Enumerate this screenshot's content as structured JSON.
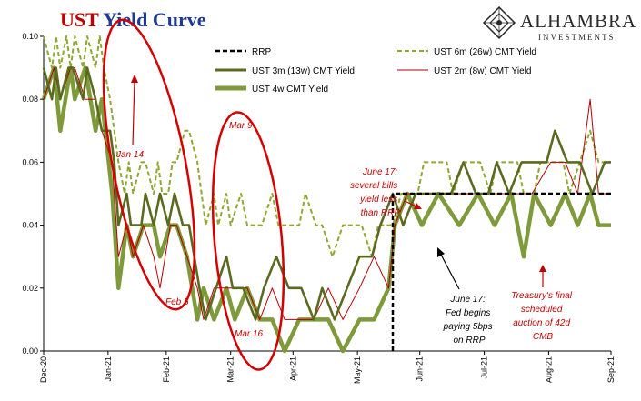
{
  "title": {
    "part1": "UST",
    "part2": " Yield Curve"
  },
  "logo": {
    "name": "ALHAMBRA",
    "sub": "INVESTMENTS"
  },
  "colors": {
    "olive_light": "#8fa832",
    "olive_dark": "#5a6b1f",
    "olive_4w": "#7f9a3a",
    "red": "#b30000",
    "ellipse": "#d40000",
    "black": "#000000"
  },
  "legend": {
    "rrp": "RRP",
    "m6": "UST 6m (26w) CMT Yield",
    "m3": "UST 3m (13w) CMT Yield",
    "m2": "UST 2m (8w) CMT Yield",
    "w4": "UST 4w CMT Yield"
  },
  "annotations": {
    "jan14": "Jan 14",
    "feb5": "Feb 5",
    "mar9": "Mar 9",
    "mar16": "Mar 16",
    "june17a": [
      "June 17:",
      "several bills",
      "yield less",
      "than RRP"
    ],
    "june17b": [
      "June 17:",
      "Fed begins",
      "paying 5bps",
      "on RRP"
    ],
    "treasury": [
      "Treasury's final",
      "scheduled",
      "auction of 42d",
      "CMB"
    ]
  },
  "chart_data": {
    "type": "line",
    "x_start": "2020-12-31",
    "x_end": "2021-09-30",
    "x_ticks": [
      "Dec-20",
      "Jan-21",
      "Feb-21",
      "Mar-21",
      "Apr-21",
      "May-21",
      "Jun-21",
      "Jul-21",
      "Aug-21",
      "Sep-21"
    ],
    "y_ticks": [
      "0.10",
      "0.08",
      "0.06",
      "0.04",
      "0.02",
      "0.00"
    ],
    "ylim": [
      0,
      0.1
    ],
    "series": [
      {
        "name": "RRP",
        "dates": [
          "2021-06-17",
          "2021-09-30"
        ],
        "values": [
          0.05,
          0.05
        ],
        "start_from_zero": true
      },
      {
        "name": "UST 6m (26w) CMT Yield",
        "dates": [
          "2020-12-31",
          "2021-01-04",
          "2021-01-06",
          "2021-01-08",
          "2021-01-11",
          "2021-01-13",
          "2021-01-15",
          "2021-01-19",
          "2021-01-21",
          "2021-01-25",
          "2021-01-27",
          "2021-01-29",
          "2021-02-01",
          "2021-02-03",
          "2021-02-05",
          "2021-02-08",
          "2021-02-10",
          "2021-02-12",
          "2021-02-16",
          "2021-02-18",
          "2021-02-22",
          "2021-02-24",
          "2021-02-26",
          "2021-03-01",
          "2021-03-03",
          "2021-03-05",
          "2021-03-09",
          "2021-03-11",
          "2021-03-15",
          "2021-03-17",
          "2021-03-19",
          "2021-03-23",
          "2021-03-25",
          "2021-03-29",
          "2021-03-31",
          "2021-04-05",
          "2021-04-08",
          "2021-04-12",
          "2021-04-15",
          "2021-04-20",
          "2021-04-23",
          "2021-04-28",
          "2021-05-03",
          "2021-05-06",
          "2021-05-11",
          "2021-05-14",
          "2021-05-19",
          "2021-05-24",
          "2021-05-27",
          "2021-06-02",
          "2021-06-07",
          "2021-06-10",
          "2021-06-15",
          "2021-06-17",
          "2021-06-21",
          "2021-06-24",
          "2021-06-29",
          "2021-07-02",
          "2021-07-08",
          "2021-07-13",
          "2021-07-16",
          "2021-07-21",
          "2021-07-26",
          "2021-07-29",
          "2021-08-03",
          "2021-08-06",
          "2021-08-11",
          "2021-08-16",
          "2021-08-19",
          "2021-08-24",
          "2021-08-27",
          "2021-09-01",
          "2021-09-07",
          "2021-09-10",
          "2021-09-15",
          "2021-09-20",
          "2021-09-24",
          "2021-09-30"
        ],
        "values": [
          0.1,
          0.09,
          0.1,
          0.09,
          0.1,
          0.09,
          0.1,
          0.09,
          0.1,
          0.09,
          0.1,
          0.09,
          0.08,
          0.07,
          0.06,
          0.05,
          0.06,
          0.05,
          0.06,
          0.06,
          0.05,
          0.06,
          0.05,
          0.05,
          0.06,
          0.06,
          0.07,
          0.07,
          0.06,
          0.05,
          0.04,
          0.05,
          0.04,
          0.05,
          0.04,
          0.05,
          0.04,
          0.04,
          0.04,
          0.05,
          0.04,
          0.04,
          0.04,
          0.05,
          0.04,
          0.04,
          0.03,
          0.04,
          0.04,
          0.04,
          0.03,
          0.04,
          0.04,
          0.04,
          0.05,
          0.05,
          0.05,
          0.06,
          0.06,
          0.06,
          0.05,
          0.06,
          0.06,
          0.06,
          0.05,
          0.06,
          0.06,
          0.06,
          0.05,
          0.05,
          0.06,
          0.06,
          0.06,
          0.05,
          0.06,
          0.07,
          0.06,
          0.06
        ]
      },
      {
        "name": "UST 3m (13w) CMT Yield",
        "dates": [
          "2020-12-31",
          "2021-01-04",
          "2021-01-06",
          "2021-01-08",
          "2021-01-12",
          "2021-01-14",
          "2021-01-19",
          "2021-01-21",
          "2021-01-25",
          "2021-01-28",
          "2021-02-01",
          "2021-02-03",
          "2021-02-05",
          "2021-02-09",
          "2021-02-11",
          "2021-02-16",
          "2021-02-18",
          "2021-02-22",
          "2021-02-25",
          "2021-03-01",
          "2021-03-04",
          "2021-03-08",
          "2021-03-11",
          "2021-03-16",
          "2021-03-19",
          "2021-03-24",
          "2021-03-29",
          "2021-04-01",
          "2021-04-06",
          "2021-04-12",
          "2021-04-16",
          "2021-04-22",
          "2021-04-28",
          "2021-05-04",
          "2021-05-10",
          "2021-05-14",
          "2021-05-20",
          "2021-05-26",
          "2021-06-01",
          "2021-06-07",
          "2021-06-11",
          "2021-06-17",
          "2021-06-22",
          "2021-06-28",
          "2021-07-02",
          "2021-07-09",
          "2021-07-15",
          "2021-07-21",
          "2021-07-27",
          "2021-08-02",
          "2021-08-06",
          "2021-08-12",
          "2021-08-18",
          "2021-08-24",
          "2021-08-30",
          "2021-09-03",
          "2021-09-09",
          "2021-09-15",
          "2021-09-21",
          "2021-09-27",
          "2021-09-30"
        ],
        "values": [
          0.09,
          0.08,
          0.09,
          0.08,
          0.09,
          0.09,
          0.08,
          0.09,
          0.08,
          0.07,
          0.07,
          0.06,
          0.04,
          0.05,
          0.04,
          0.04,
          0.05,
          0.04,
          0.05,
          0.04,
          0.05,
          0.04,
          0.04,
          0.02,
          0.01,
          0.02,
          0.03,
          0.02,
          0.02,
          0.01,
          0.02,
          0.03,
          0.02,
          0.02,
          0.01,
          0.02,
          0.01,
          0.02,
          0.03,
          0.03,
          0.04,
          0.05,
          0.04,
          0.05,
          0.05,
          0.05,
          0.05,
          0.06,
          0.05,
          0.05,
          0.06,
          0.05,
          0.06,
          0.06,
          0.06,
          0.07,
          0.06,
          0.06,
          0.05,
          0.06,
          0.06
        ]
      },
      {
        "name": "UST 2m (8w) CMT Yield",
        "dates": [
          "2020-12-31",
          "2021-01-05",
          "2021-01-08",
          "2021-01-13",
          "2021-01-15",
          "2021-01-20",
          "2021-01-25",
          "2021-01-28",
          "2021-02-02",
          "2021-02-05",
          "2021-02-09",
          "2021-02-12",
          "2021-02-17",
          "2021-02-22",
          "2021-02-25",
          "2021-03-02",
          "2021-03-05",
          "2021-03-10",
          "2021-03-15",
          "2021-03-18",
          "2021-03-23",
          "2021-03-29",
          "2021-04-02",
          "2021-04-08",
          "2021-04-14",
          "2021-04-20",
          "2021-04-26",
          "2021-05-03",
          "2021-05-10",
          "2021-05-17",
          "2021-05-24",
          "2021-06-01",
          "2021-06-08",
          "2021-06-15",
          "2021-06-18",
          "2021-06-24",
          "2021-07-01",
          "2021-07-09",
          "2021-07-19",
          "2021-07-28",
          "2021-08-05",
          "2021-08-13",
          "2021-08-23",
          "2021-09-01",
          "2021-09-08",
          "2021-09-14",
          "2021-09-20",
          "2021-09-24",
          "2021-09-30"
        ],
        "values": [
          0.08,
          0.09,
          0.08,
          0.09,
          0.09,
          0.08,
          0.08,
          0.07,
          0.06,
          0.03,
          0.04,
          0.03,
          0.04,
          0.03,
          0.02,
          0.04,
          0.04,
          0.03,
          0.02,
          0.01,
          0.02,
          0.02,
          0.02,
          0.02,
          0.01,
          0.02,
          0.01,
          0.01,
          0.01,
          0.02,
          0.01,
          0.02,
          0.03,
          0.02,
          0.04,
          0.05,
          0.05,
          0.05,
          0.05,
          0.05,
          0.05,
          0.05,
          0.05,
          0.06,
          0.06,
          0.05,
          0.08,
          0.05,
          0.05
        ]
      },
      {
        "name": "UST 4w CMT Yield",
        "dates": [
          "2020-12-31",
          "2021-01-05",
          "2021-01-08",
          "2021-01-13",
          "2021-01-15",
          "2021-01-20",
          "2021-01-25",
          "2021-01-28",
          "2021-02-02",
          "2021-02-05",
          "2021-02-09",
          "2021-02-12",
          "2021-02-17",
          "2021-02-22",
          "2021-02-25",
          "2021-03-02",
          "2021-03-05",
          "2021-03-10",
          "2021-03-15",
          "2021-03-18",
          "2021-03-23",
          "2021-03-29",
          "2021-04-02",
          "2021-04-08",
          "2021-04-14",
          "2021-04-20",
          "2021-04-26",
          "2021-05-03",
          "2021-05-10",
          "2021-05-17",
          "2021-05-24",
          "2021-06-01",
          "2021-06-08",
          "2021-06-15",
          "2021-06-18",
          "2021-06-24",
          "2021-07-01",
          "2021-07-09",
          "2021-07-19",
          "2021-07-28",
          "2021-08-05",
          "2021-08-13",
          "2021-08-19",
          "2021-08-24",
          "2021-09-01",
          "2021-09-08",
          "2021-09-14",
          "2021-09-20",
          "2021-09-24",
          "2021-09-30"
        ],
        "values": [
          0.08,
          0.09,
          0.07,
          0.09,
          0.08,
          0.09,
          0.07,
          0.08,
          0.05,
          0.02,
          0.04,
          0.03,
          0.04,
          0.04,
          0.03,
          0.04,
          0.04,
          0.03,
          0.01,
          0.02,
          0.01,
          0.02,
          0.01,
          0.02,
          0.01,
          0.01,
          0.0,
          0.01,
          0.01,
          0.01,
          0.0,
          0.01,
          0.01,
          0.02,
          0.04,
          0.05,
          0.04,
          0.05,
          0.04,
          0.05,
          0.04,
          0.05,
          0.03,
          0.05,
          0.04,
          0.05,
          0.04,
          0.05,
          0.04,
          0.04
        ]
      }
    ]
  }
}
